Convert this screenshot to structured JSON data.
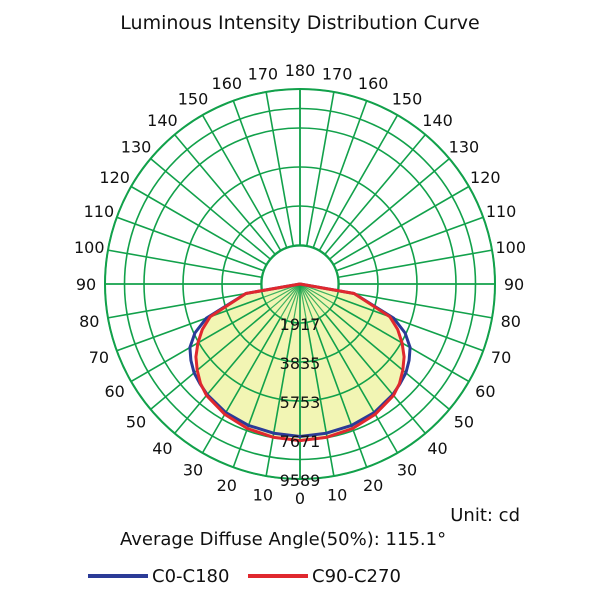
{
  "chart_data": {
    "type": "polar",
    "title": "Luminous Intensity Distribution Curve",
    "unit_label": "Unit: cd",
    "average_diffuse_angle_label": "Average Diffuse Angle(50%): 115.1°",
    "angle_labels_left": [
      "0",
      "10",
      "20",
      "30",
      "40",
      "50",
      "60",
      "70",
      "80",
      "90",
      "100",
      "110",
      "120",
      "130",
      "140",
      "150",
      "160",
      "170",
      "180"
    ],
    "angle_labels_right": [
      "10",
      "20",
      "30",
      "40",
      "50",
      "60",
      "70",
      "80",
      "90",
      "100",
      "110",
      "120",
      "130",
      "140",
      "150",
      "160",
      "170"
    ],
    "radial_ticks": [
      1917,
      3835,
      5753,
      7671,
      9589
    ],
    "radial_max": 9589,
    "grid_color": "#12a14b",
    "fill_color": "#f2f5b4",
    "series": [
      {
        "name": "C0-C180",
        "color": "#2b3b97",
        "angles": [
          0,
          10,
          20,
          30,
          40,
          45,
          50,
          55,
          60,
          65,
          70,
          80,
          90
        ],
        "values": [
          7500,
          7450,
          7400,
          7300,
          7100,
          6950,
          6800,
          6550,
          6250,
          5700,
          4900,
          2700,
          0
        ]
      },
      {
        "name": "C90-C270",
        "color": "#e0282e",
        "angles": [
          0,
          10,
          20,
          30,
          40,
          45,
          50,
          55,
          60,
          65,
          70,
          80,
          90
        ],
        "values": [
          7700,
          7650,
          7560,
          7400,
          7150,
          6920,
          6600,
          6250,
          5800,
          5300,
          4700,
          2700,
          0
        ]
      }
    ]
  }
}
